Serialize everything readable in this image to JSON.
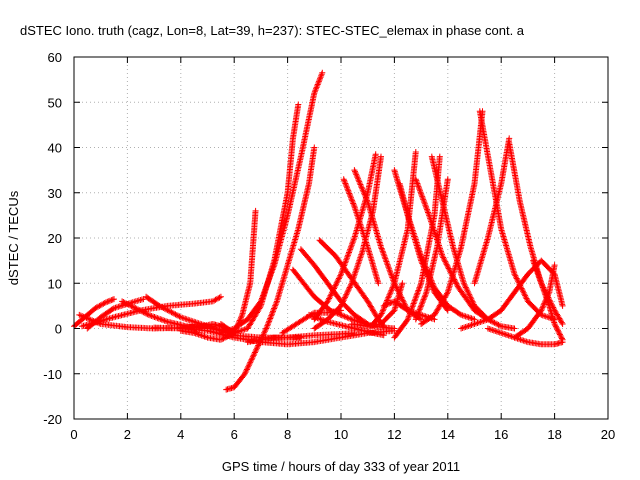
{
  "chart_data": {
    "type": "scatter",
    "title": "dSTEC Iono. truth (cagz, Lon=8, Lat=39, h=237): STEC-STEC_elemax in phase cont. a",
    "xlabel": "GPS time / hours of day 333 of year 2011",
    "ylabel": "dSTEC  / TECUs",
    "xlim": [
      0,
      20
    ],
    "ylim": [
      -20,
      60
    ],
    "xticks": [
      "0",
      "2",
      "4",
      "6",
      "8",
      "10",
      "12",
      "14",
      "16",
      "18",
      "20"
    ],
    "yticks": [
      "-20",
      "-10",
      "0",
      "10",
      "20",
      "30",
      "40",
      "50",
      "60"
    ],
    "grid": true,
    "marker": "+",
    "color": "#ff0000",
    "series": [
      {
        "x": [
          0.0,
          0.4,
          0.8,
          1.2,
          1.5
        ],
        "y": [
          0.5,
          2.5,
          4.5,
          5.8,
          6.5
        ]
      },
      {
        "x": [
          0.2,
          1.0,
          2.0,
          3.0,
          4.0,
          4.8,
          5.2,
          5.5,
          6.0
        ],
        "y": [
          3.0,
          1.0,
          0.3,
          0.0,
          0.2,
          0.5,
          1.0,
          0.5,
          -1.0
        ]
      },
      {
        "x": [
          0.3,
          1.5,
          2.5,
          3.5,
          4.5,
          5.2,
          5.5
        ],
        "y": [
          0.5,
          2.5,
          4.0,
          5.0,
          5.5,
          6.0,
          7.0
        ]
      },
      {
        "x": [
          0.5,
          1.0,
          1.5,
          2.2,
          2.6
        ],
        "y": [
          0.0,
          2.5,
          4.5,
          5.8,
          6.5
        ]
      },
      {
        "x": [
          1.8,
          2.3,
          2.8,
          3.5,
          4.2,
          5.0,
          5.8
        ],
        "y": [
          6.0,
          4.5,
          3.0,
          1.5,
          0.5,
          0.0,
          -0.5
        ]
      },
      {
        "x": [
          2.7,
          3.2,
          4.0,
          5.0,
          6.0,
          7.0,
          8.0,
          9.0,
          10.0,
          10.5
        ],
        "y": [
          7.0,
          5.0,
          2.5,
          0.5,
          -1.5,
          -2.0,
          -2.0,
          -1.5,
          -1.2,
          -1.0
        ]
      },
      {
        "x": [
          3.0,
          4.0,
          5.0,
          6.0,
          7.0,
          8.0,
          9.0,
          10.0,
          11.0,
          12.0
        ],
        "y": [
          0.2,
          0.0,
          -0.5,
          -2.0,
          -3.0,
          -3.5,
          -3.0,
          -2.0,
          -1.0,
          -0.5
        ]
      },
      {
        "x": [
          4.0,
          4.5,
          5.0,
          5.5,
          6.0,
          6.3,
          6.6,
          6.8
        ],
        "y": [
          -0.5,
          -1.0,
          -2.0,
          -2.5,
          -1.0,
          3.0,
          10.0,
          26.0
        ]
      },
      {
        "x": [
          5.5,
          6.0,
          6.5,
          7.0,
          7.5,
          8.0,
          8.2,
          8.4
        ],
        "y": [
          1.0,
          -1.0,
          0.0,
          5.0,
          15.0,
          30.0,
          42.0,
          49.5
        ]
      },
      {
        "x": [
          5.5,
          6.0,
          6.5,
          7.0,
          7.5,
          8.0,
          8.5,
          9.0,
          9.3
        ],
        "y": [
          -1.0,
          0.0,
          2.0,
          6.0,
          14.0,
          25.0,
          38.0,
          52.0,
          56.5
        ]
      },
      {
        "x": [
          5.7,
          6.0,
          6.4,
          6.8,
          7.2,
          7.6,
          8.0,
          8.4,
          8.8,
          9.0
        ],
        "y": [
          -13.5,
          -13.0,
          -10.0,
          -5.0,
          0.0,
          6.0,
          14.0,
          22.0,
          32.0,
          40.0
        ]
      },
      {
        "x": [
          6.5,
          7.0,
          7.5,
          8.0,
          8.5
        ],
        "y": [
          -3.0,
          -2.5,
          -2.0,
          -2.0,
          -2.0
        ]
      },
      {
        "x": [
          7.8,
          8.2,
          8.6,
          9.0,
          9.5,
          10.0
        ],
        "y": [
          -1.0,
          0.5,
          2.0,
          3.5,
          3.5,
          4.0
        ]
      },
      {
        "x": [
          8.2,
          8.6,
          9.0,
          9.6,
          10.4,
          11.2,
          12.0
        ],
        "y": [
          13.0,
          10.0,
          7.0,
          4.0,
          2.0,
          0.5,
          0.0
        ]
      },
      {
        "x": [
          8.5,
          9.0,
          9.5,
          10.0,
          10.5,
          11.0
        ],
        "y": [
          17.5,
          14.0,
          10.0,
          6.0,
          3.0,
          1.0
        ]
      },
      {
        "x": [
          8.8,
          9.5,
          10.5,
          11.2,
          11.6
        ],
        "y": [
          3.0,
          1.5,
          0.0,
          -1.0,
          -1.5
        ]
      },
      {
        "x": [
          9.2,
          9.8,
          10.4,
          11.0,
          11.4,
          11.6
        ],
        "y": [
          19.5,
          16.0,
          11.0,
          6.0,
          2.0,
          0.5
        ]
      },
      {
        "x": [
          9.0,
          9.5,
          10.0,
          10.5,
          11.0,
          11.3
        ],
        "y": [
          2.0,
          6.0,
          12.0,
          20.0,
          30.0,
          38.5
        ]
      },
      {
        "x": [
          9.0,
          9.5,
          10.0,
          10.4,
          10.8,
          11.2,
          11.5
        ],
        "y": [
          0.0,
          2.0,
          5.0,
          10.0,
          17.0,
          26.0,
          38.0
        ]
      },
      {
        "x": [
          10.1,
          10.5,
          11.0,
          11.4
        ],
        "y": [
          33.0,
          27.0,
          18.0,
          10.0
        ]
      },
      {
        "x": [
          10.5,
          11.0,
          11.5,
          12.0,
          12.5,
          13.0
        ],
        "y": [
          35.0,
          28.0,
          18.0,
          10.0,
          4.0,
          2.0
        ]
      },
      {
        "x": [
          10.4,
          11.0,
          11.5,
          12.0,
          12.3
        ],
        "y": [
          1.0,
          0.5,
          1.0,
          4.0,
          10.0
        ]
      },
      {
        "x": [
          11.2,
          11.5,
          12.0,
          12.5,
          12.8
        ],
        "y": [
          1.0,
          3.0,
          10.0,
          22.0,
          39.0
        ]
      },
      {
        "x": [
          11.6,
          12.0,
          12.5,
          13.0,
          13.5
        ],
        "y": [
          5.0,
          6.0,
          4.0,
          3.0,
          2.0
        ]
      },
      {
        "x": [
          12.0,
          12.5,
          13.0,
          13.5,
          14.0,
          14.5,
          15.0
        ],
        "y": [
          35.0,
          25.0,
          16.0,
          9.0,
          5.0,
          3.0,
          2.0
        ]
      },
      {
        "x": [
          12.2,
          12.5,
          13.0,
          13.5,
          14.0
        ],
        "y": [
          32.0,
          25.0,
          15.0,
          8.0,
          4.0
        ]
      },
      {
        "x": [
          12.8,
          13.3,
          13.8,
          14.4,
          15.0,
          15.5
        ],
        "y": [
          33.0,
          25.0,
          16.0,
          9.0,
          4.0,
          2.0
        ]
      },
      {
        "x": [
          12.0,
          12.5,
          13.0,
          13.5,
          13.7
        ],
        "y": [
          -2.0,
          2.0,
          10.0,
          25.0,
          38.0
        ]
      },
      {
        "x": [
          12.8,
          13.2,
          13.6,
          14.0
        ],
        "y": [
          2.0,
          8.0,
          18.0,
          33.0
        ]
      },
      {
        "x": [
          13.4,
          13.8,
          14.2,
          14.6,
          15.0,
          15.5,
          16.0,
          16.5
        ],
        "y": [
          38.0,
          28.0,
          18.0,
          10.0,
          5.0,
          2.0,
          0.5,
          0.0
        ]
      },
      {
        "x": [
          13.0,
          13.5,
          14.0,
          14.5,
          15.0,
          15.3
        ],
        "y": [
          1.0,
          3.0,
          8.0,
          18.0,
          32.0,
          48.0
        ]
      },
      {
        "x": [
          15.2,
          15.6,
          16.0,
          16.5,
          17.0,
          17.5,
          18.0
        ],
        "y": [
          48.0,
          35.0,
          22.0,
          12.0,
          6.0,
          3.0,
          2.0
        ]
      },
      {
        "x": [
          15.0,
          15.5,
          16.0,
          16.3
        ],
        "y": [
          10.0,
          20.0,
          32.0,
          42.0
        ]
      },
      {
        "x": [
          16.3,
          16.7,
          17.1,
          17.5,
          18.0,
          18.3
        ],
        "y": [
          41.0,
          28.0,
          18.0,
          10.0,
          4.0,
          1.0
        ]
      },
      {
        "x": [
          14.5,
          15.0,
          15.5,
          16.0,
          16.5,
          17.0,
          17.5,
          18.0,
          18.3
        ],
        "y": [
          0.0,
          1.0,
          2.0,
          4.0,
          8.0,
          12.0,
          15.0,
          12.0,
          5.0
        ]
      },
      {
        "x": [
          17.2,
          17.5,
          17.8,
          18.0,
          18.3
        ],
        "y": [
          15.0,
          10.0,
          5.0,
          1.0,
          -2.5
        ]
      },
      {
        "x": [
          16.5,
          17.0,
          17.5,
          17.8,
          18.0
        ],
        "y": [
          -2.0,
          0.0,
          4.0,
          8.0,
          14.0
        ]
      },
      {
        "x": [
          15.5,
          16.0,
          16.5,
          17.0,
          17.5,
          18.0,
          18.3
        ],
        "y": [
          0.0,
          -1.0,
          -2.0,
          -3.0,
          -3.5,
          -3.5,
          -3.0
        ]
      }
    ]
  }
}
